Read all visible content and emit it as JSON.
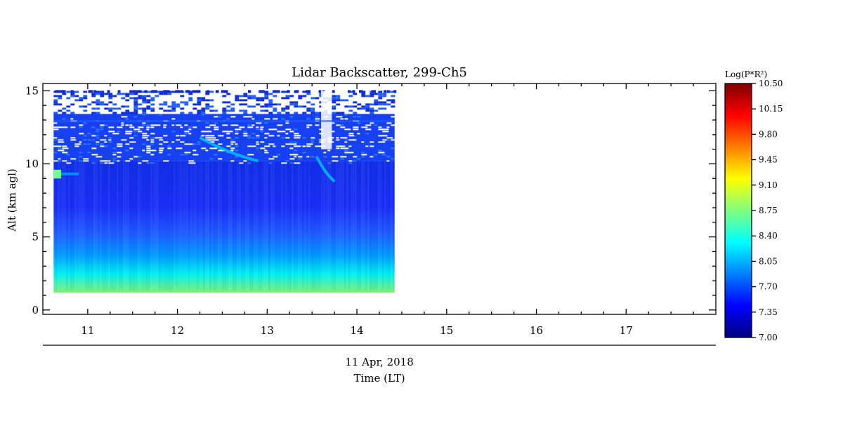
{
  "chart_data": {
    "type": "heatmap",
    "title": "Lidar Backscatter, 299-Ch5",
    "xlabel": "Time (LT)",
    "ylabel": "Alt (km agl)",
    "date_label": "11 Apr, 2018",
    "x_ticks": [
      "11",
      "12",
      "13",
      "14",
      "15",
      "16",
      "17"
    ],
    "y_ticks": [
      "0",
      "5",
      "10",
      "15"
    ],
    "xlim": [
      10.5,
      18.0
    ],
    "ylim": [
      -0.3,
      15.5
    ],
    "data_time_range": [
      10.62,
      14.42
    ],
    "data_alt_range": [
      1.2,
      15.0
    ],
    "colorbar": {
      "label": "Log(P*R²)",
      "range": [
        7.0,
        10.5
      ],
      "ticks": [
        "10.50",
        "10.15",
        "9.80",
        "9.45",
        "9.10",
        "8.75",
        "8.40",
        "8.05",
        "7.70",
        "7.35",
        "7.00"
      ],
      "colors": [
        "#00007f",
        "#0000ff",
        "#007fff",
        "#00ffff",
        "#7fff7f",
        "#ffff00",
        "#ff7f00",
        "#ff0000",
        "#7f0000"
      ]
    },
    "features": [
      {
        "type": "cirrus",
        "time": [
          10.62,
          14.42
        ],
        "alt": [
          10.0,
          13.5
        ],
        "value": 7.6
      },
      {
        "type": "aerosol_layer",
        "time": [
          10.62,
          10.9
        ],
        "alt": [
          9.0,
          9.6
        ],
        "value": 8.7
      },
      {
        "type": "fall_streak",
        "time": [
          12.25,
          12.9
        ],
        "alt": [
          10.2,
          11.8
        ],
        "value": 8.1
      },
      {
        "type": "fall_streak",
        "time": [
          13.55,
          13.75
        ],
        "alt": [
          8.8,
          10.5
        ],
        "value": 8.1
      }
    ]
  }
}
